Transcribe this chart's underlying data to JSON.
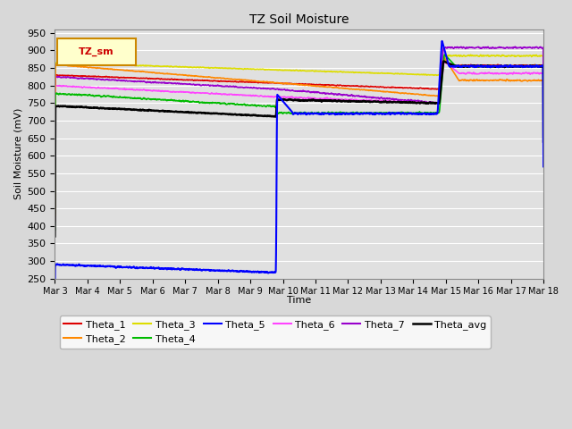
{
  "title": "TZ Soil Moisture",
  "ylabel": "Soil Moisture (mV)",
  "xlabel": "Time",
  "ylim": [
    250,
    960
  ],
  "yticks": [
    250,
    300,
    350,
    400,
    450,
    500,
    550,
    600,
    650,
    700,
    750,
    800,
    850,
    900,
    950
  ],
  "bg_color": "#d8d8d8",
  "plot_bg_color": "#e0e0e0",
  "legend_label": "TZ_sm",
  "legend_box_facecolor": "#ffffcc",
  "legend_box_edgecolor": "#cc8800",
  "x_tick_labels": [
    "Mar 3",
    "Mar 4",
    "Mar 5",
    "Mar 6",
    "Mar 7",
    "Mar 8",
    "Mar 9",
    "Mar 10",
    "Mar 11",
    "Mar 12",
    "Mar 13",
    "Mar 14",
    "Mar 15",
    "Mar 16",
    "Mar 17",
    "Mar 18"
  ],
  "series": {
    "Theta_1": {
      "color": "#dd0000",
      "lw": 1.2
    },
    "Theta_2": {
      "color": "#ff8800",
      "lw": 1.2
    },
    "Theta_3": {
      "color": "#dddd00",
      "lw": 1.2
    },
    "Theta_4": {
      "color": "#00bb00",
      "lw": 1.2
    },
    "Theta_5": {
      "color": "#0000ff",
      "lw": 1.5
    },
    "Theta_6": {
      "color": "#ff44ff",
      "lw": 1.2
    },
    "Theta_7": {
      "color": "#9900cc",
      "lw": 1.2
    },
    "Theta_avg": {
      "color": "#000000",
      "lw": 1.8
    }
  }
}
